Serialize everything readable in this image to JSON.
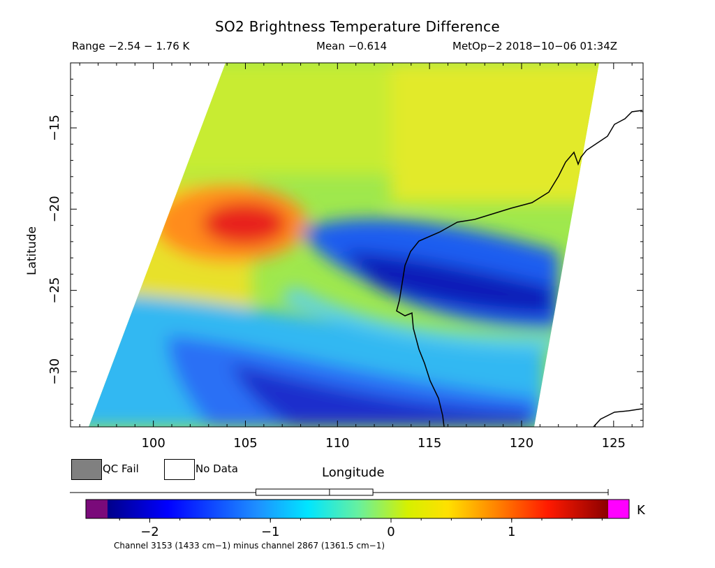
{
  "header": {
    "title": "SO2 Brightness Temperature Difference",
    "range": "Range −2.54 − 1.76 K",
    "mean": "Mean −0.614",
    "satellite_time": "MetOp−2 2018−10−06 01:34Z"
  },
  "axes": {
    "x_label": "Longitude",
    "y_label": "Latitude",
    "x_ticks": [
      "100",
      "105",
      "110",
      "115",
      "120",
      "125"
    ],
    "x_tick_values": [
      100,
      105,
      110,
      115,
      120,
      125
    ],
    "y_ticks": [
      "−15",
      "−20",
      "−25",
      "−30"
    ],
    "y_tick_values": [
      -15,
      -20,
      -25,
      -30
    ],
    "x_range": [
      95.5,
      126.6
    ],
    "y_range": [
      -33.4,
      -11
    ]
  },
  "legend": {
    "qc_fail": "QC Fail",
    "no_data": "No Data",
    "qc_fail_color": "#808080",
    "no_data_color": "#ffffff"
  },
  "colorbar": {
    "unit": "K",
    "tick_labels": [
      "−2",
      "−1",
      "0",
      "1"
    ],
    "tick_values": [
      -2,
      -1,
      0,
      1
    ],
    "min": -2.35,
    "max": 1.8,
    "under_color": "#7a0a7a",
    "over_color": "#ff00ff",
    "box_min": -1.12,
    "box_q1": -0.88,
    "box_median": -0.51,
    "box_q3": -0.15
  },
  "footnote": "Channel 3153 (1433 cm−1) minus channel 2867 (1361.5 cm−1)",
  "features": {
    "high_plume": {
      "name": "warm anomaly",
      "lon": 105,
      "lat": -21,
      "value": 1.3
    },
    "low_band_north": {
      "lon_range": [
        108,
        121
      ],
      "lat": -24.3,
      "value": -1.9
    },
    "low_band_south": {
      "lon_range": [
        104,
        121
      ],
      "lat": -31.6,
      "value": -1.8
    }
  }
}
